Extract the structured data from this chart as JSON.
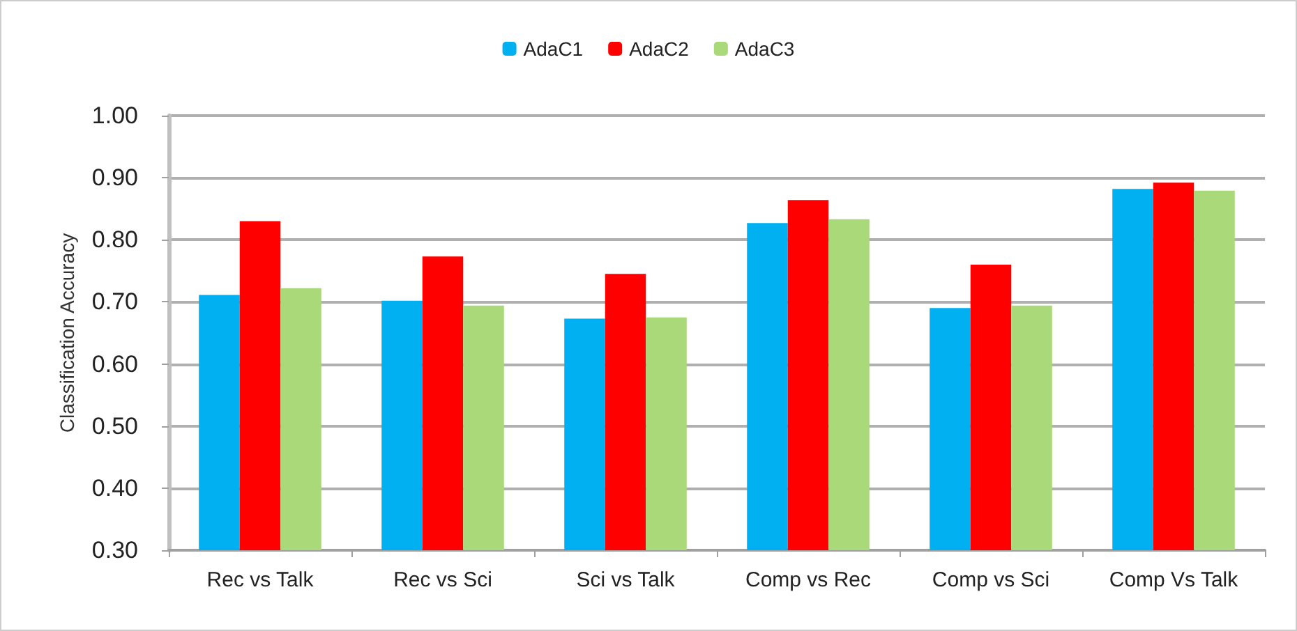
{
  "chart_data": {
    "type": "bar",
    "ylabel": "Classification Accuracy",
    "categories": [
      "Rec vs Talk",
      "Rec vs Sci",
      "Sci vs Talk",
      "Comp vs Rec",
      "Comp vs Sci",
      "Comp Vs Talk"
    ],
    "series": [
      {
        "name": "AdaC1",
        "color": "#00b0f0",
        "values": [
          0.711,
          0.702,
          0.673,
          0.827,
          0.69,
          0.882
        ]
      },
      {
        "name": "AdaC2",
        "color": "#ff0000",
        "values": [
          0.83,
          0.773,
          0.745,
          0.864,
          0.76,
          0.892
        ]
      },
      {
        "name": "AdaC3",
        "color": "#a9d978",
        "values": [
          0.722,
          0.694,
          0.675,
          0.833,
          0.694,
          0.879
        ]
      }
    ],
    "ylim": [
      0.3,
      1.0
    ],
    "yticks": [
      {
        "value": 0.3,
        "label": "0.30"
      },
      {
        "value": 0.4,
        "label": "0.40"
      },
      {
        "value": 0.5,
        "label": "0.50"
      },
      {
        "value": 0.6,
        "label": "0.60"
      },
      {
        "value": 0.7,
        "label": "0.70"
      },
      {
        "value": 0.8,
        "label": "0.80"
      },
      {
        "value": 0.9,
        "label": "0.90"
      },
      {
        "value": 1.0,
        "label": "1.00"
      }
    ],
    "grid": "y",
    "legend": "top"
  }
}
